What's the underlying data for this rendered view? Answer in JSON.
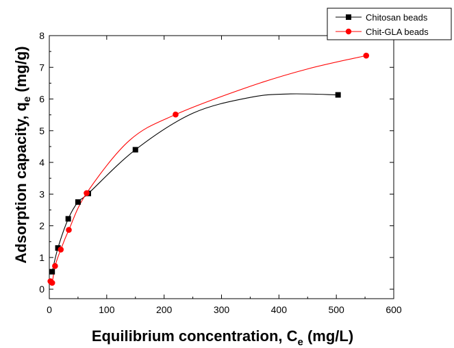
{
  "chart_data": {
    "type": "scatter",
    "xlabel": "Equilibrium concentration, C",
    "xlabel_sub": "e",
    "xlabel_unit": " (mg/L)",
    "ylabel": "Adsorption capacity, q",
    "ylabel_sub": "e",
    "ylabel_unit": " (mg/g)",
    "xlim": [
      0,
      600
    ],
    "ylim": [
      -0.3,
      8
    ],
    "xticks": [
      0,
      100,
      200,
      300,
      400,
      500,
      600
    ],
    "yticks": [
      0,
      1,
      2,
      3,
      4,
      5,
      6,
      7,
      8
    ],
    "grid": false,
    "legend_position": "top-right",
    "series": [
      {
        "name": "Chitosan beads",
        "color": "#000000",
        "marker": "square",
        "x": [
          5,
          15,
          33,
          50,
          68,
          150,
          503
        ],
        "y": [
          0.55,
          1.3,
          2.22,
          2.75,
          3.02,
          4.4,
          6.13
        ],
        "curve": [
          [
            5,
            0.55
          ],
          [
            15,
            1.3
          ],
          [
            33,
            2.22
          ],
          [
            50,
            2.75
          ],
          [
            68,
            3.02
          ],
          [
            150,
            4.4
          ],
          [
            250,
            5.55
          ],
          [
            350,
            6.05
          ],
          [
            420,
            6.16
          ],
          [
            503,
            6.13
          ]
        ]
      },
      {
        "name": "Chit-GLA beads",
        "color": "#ff0000",
        "marker": "circle",
        "x": [
          2,
          5,
          10,
          20,
          34,
          65,
          220,
          552
        ],
        "y": [
          0.25,
          0.2,
          0.73,
          1.25,
          1.87,
          3.03,
          5.51,
          7.37
        ],
        "curve": [
          [
            2,
            0.25
          ],
          [
            5,
            0.2
          ],
          [
            10,
            0.73
          ],
          [
            20,
            1.25
          ],
          [
            34,
            1.87
          ],
          [
            65,
            3.03
          ],
          [
            140,
            4.7
          ],
          [
            220,
            5.51
          ],
          [
            350,
            6.4
          ],
          [
            450,
            6.95
          ],
          [
            552,
            7.37
          ]
        ]
      }
    ]
  }
}
